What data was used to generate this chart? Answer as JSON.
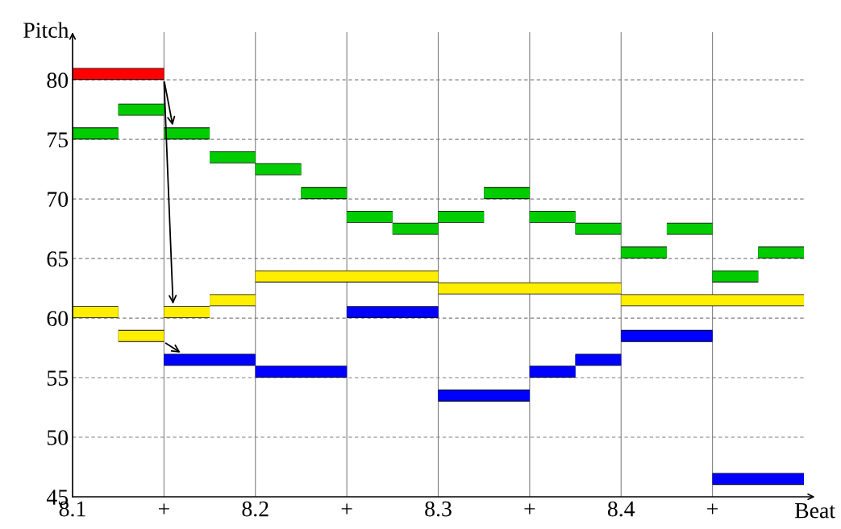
{
  "chart_data": {
    "type": "line",
    "xlabel": "Beat",
    "ylabel": "Pitch",
    "xlim": [
      8.1,
      8.5
    ],
    "ylim": [
      45,
      84
    ],
    "xticks": [
      8.1,
      {
        "value": 8.15,
        "label": "+"
      },
      8.2,
      {
        "value": 8.25,
        "label": "+"
      },
      8.3,
      {
        "value": 8.35,
        "label": "+"
      },
      8.4,
      {
        "value": 8.45,
        "label": "+"
      }
    ],
    "yticks": [
      45,
      50,
      55,
      60,
      65,
      70,
      75,
      80
    ],
    "grid": true,
    "marker": "none",
    "line_style": "solid",
    "series": [
      {
        "color": "#ff0000",
        "x": [
          8.1,
          8.15
        ],
        "values": [
          80.5,
          80.5
        ]
      },
      {
        "color": "#00cc00",
        "x": [
          8.1,
          8.125,
          null,
          8.125,
          8.15,
          null,
          8.15,
          8.175,
          null,
          8.175,
          8.2,
          null,
          8.2,
          8.225,
          null,
          8.225,
          8.25,
          null,
          8.25,
          8.275,
          null,
          8.275,
          8.3,
          null,
          8.3,
          8.325,
          null,
          8.325,
          8.35,
          null,
          8.35,
          8.375,
          null,
          8.375,
          8.4,
          null,
          8.4,
          8.425,
          null,
          8.425,
          8.45,
          null,
          8.45,
          8.475,
          null,
          8.475,
          8.5
        ],
        "values": [
          75.5,
          75.5,
          null,
          77.5,
          77.5,
          null,
          75.5,
          75.5,
          null,
          73.5,
          73.5,
          null,
          72.5,
          72.5,
          null,
          70.5,
          70.5,
          null,
          68.5,
          68.5,
          null,
          67.5,
          67.5,
          null,
          68.5,
          68.5,
          null,
          70.5,
          70.5,
          null,
          68.5,
          68.5,
          null,
          67.5,
          67.5,
          null,
          65.5,
          65.5,
          null,
          67.5,
          67.5,
          null,
          63.5,
          63.5,
          null,
          65.5,
          65.5
        ]
      },
      {
        "color": "#ffee00",
        "x": [
          8.1,
          8.125,
          null,
          8.125,
          8.15,
          null,
          8.15,
          8.175,
          null,
          8.175,
          8.2,
          null,
          8.2,
          8.3,
          null,
          8.3,
          8.4,
          null,
          8.4,
          8.5
        ],
        "values": [
          60.5,
          60.5,
          null,
          58.5,
          58.5,
          null,
          60.5,
          60.5,
          null,
          61.5,
          61.5,
          null,
          63.5,
          63.5,
          null,
          62.5,
          62.5,
          null,
          61.5,
          61.5
        ]
      },
      {
        "color": "#0000ff",
        "x": [
          8.15,
          8.2,
          null,
          8.2,
          8.25,
          null,
          8.25,
          8.3,
          null,
          8.3,
          8.35,
          null,
          8.35,
          8.375,
          null,
          8.375,
          8.4,
          null,
          8.4,
          8.45,
          null,
          8.45,
          8.5
        ],
        "values": [
          56.5,
          56.5,
          null,
          55.5,
          55.5,
          null,
          60.5,
          60.5,
          null,
          53.5,
          53.5,
          null,
          55.5,
          55.5,
          null,
          56.5,
          56.5,
          null,
          58.5,
          58.5,
          null,
          46.5,
          46.5
        ]
      }
    ]
  }
}
